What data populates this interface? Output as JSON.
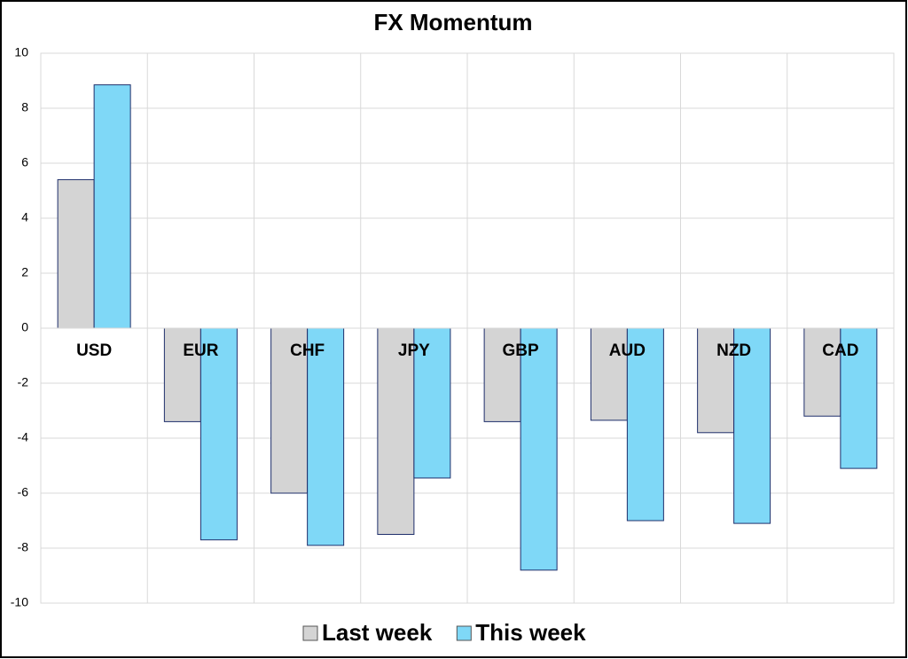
{
  "chart_data": {
    "type": "bar",
    "title": "FX Momentum",
    "categories": [
      "USD",
      "EUR",
      "CHF",
      "JPY",
      "GBP",
      "AUD",
      "NZD",
      "CAD"
    ],
    "series": [
      {
        "name": "Last week",
        "color": "#d4d4d4",
        "values": [
          5.4,
          -3.4,
          -6.0,
          -7.5,
          -3.4,
          -3.35,
          -3.8,
          -3.2
        ]
      },
      {
        "name": "This week",
        "color": "#7fd8f7",
        "values": [
          8.85,
          -7.7,
          -7.9,
          -5.45,
          -8.8,
          -7.0,
          -7.1,
          -5.1
        ]
      }
    ],
    "ylim": [
      -10,
      10
    ],
    "yticks": [
      -10,
      -8,
      -6,
      -4,
      -2,
      0,
      2,
      4,
      6,
      8,
      10
    ],
    "grid": true,
    "legend": "bottom"
  }
}
